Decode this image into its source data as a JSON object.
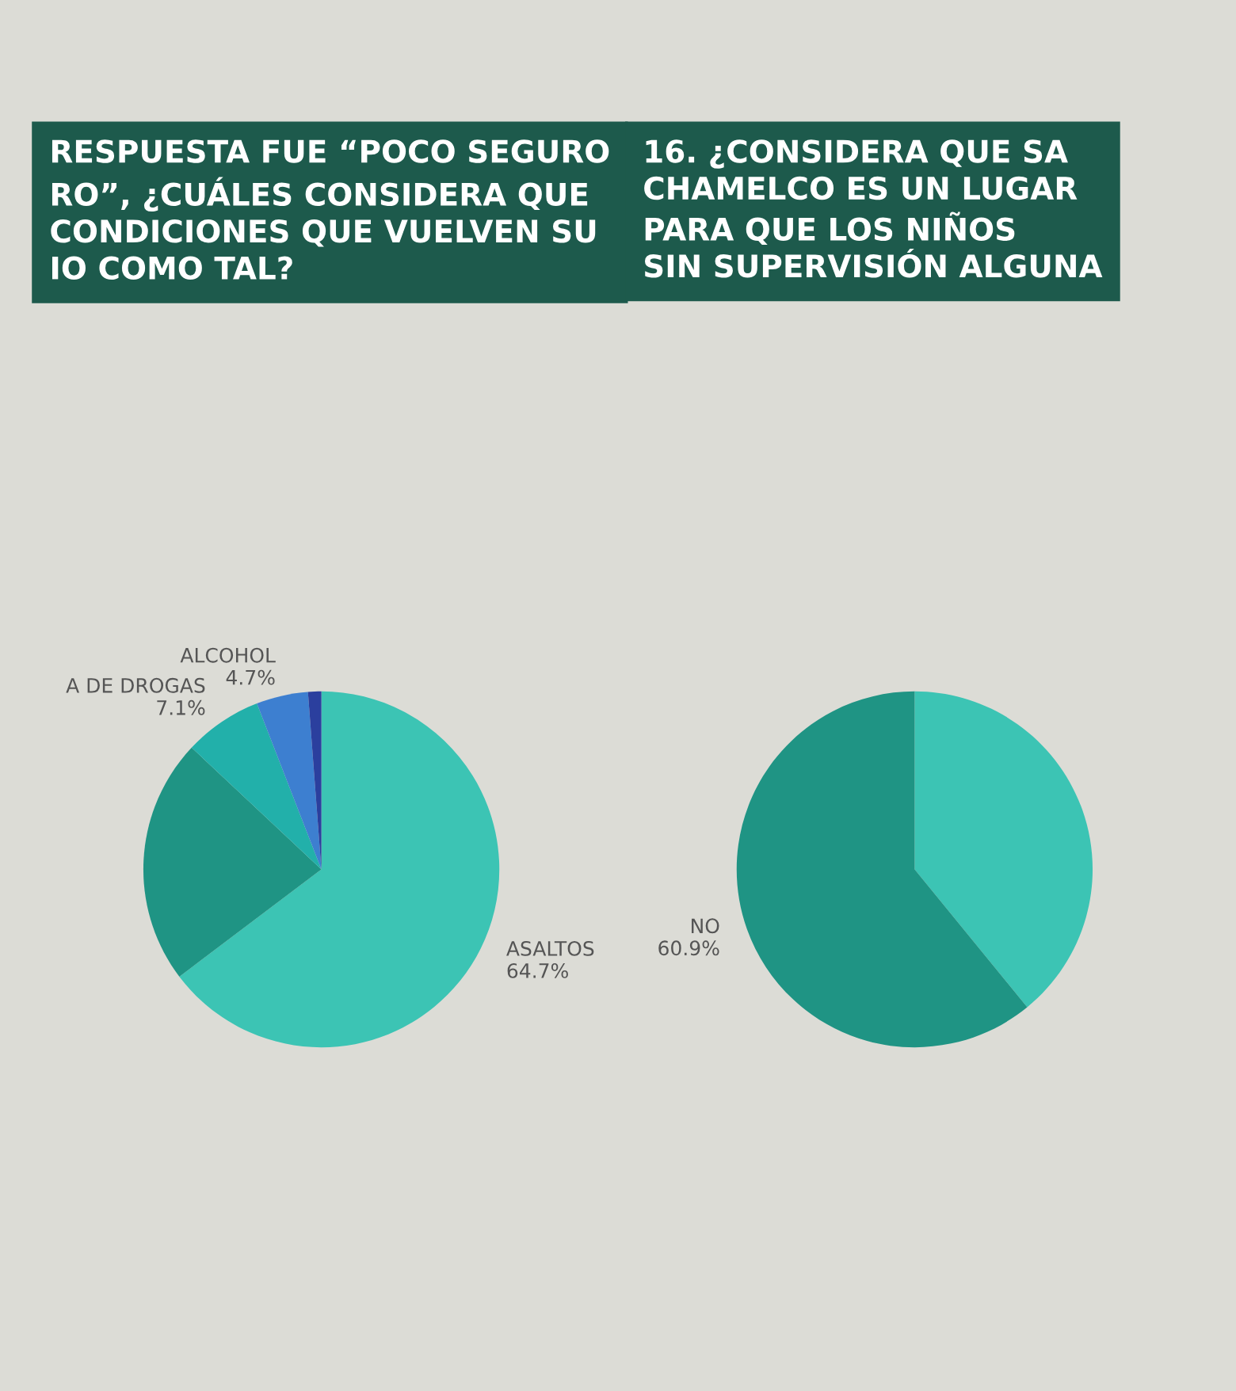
{
  "chart_data": [
    {
      "type": "pie",
      "title": "RESPUESTA FUE “POCO SEGURO\nRO”, ¿CUÁLES CONSIDERA QUE\nCONDICIONES QUE VUELVEN SU\nIO COMO TAL?",
      "categories": [
        "ASALTOS",
        null,
        "A DE DROGAS",
        "ALCOHOL",
        null
      ],
      "values": [
        64.7,
        22.3,
        7.1,
        4.7,
        1.2
      ],
      "value_labels": [
        "64.7%",
        null,
        "7.1%",
        "4.7%",
        null
      ],
      "colors": [
        "#3cc4b4",
        "#1f9484",
        "#22b0aa",
        "#3d7fd0",
        "#2b3f9e"
      ]
    },
    {
      "type": "pie",
      "title": "16. ¿CONSIDERA QUE SA\nCHAMELCO ES UN LUGAR\nPARA QUE LOS NIÑOS\nSIN SUPERVISIÓN ALGUNA",
      "categories": [
        null,
        "NO"
      ],
      "values": [
        39.1,
        60.9
      ],
      "value_labels": [
        null,
        "60.9%"
      ],
      "colors": [
        "#3cc4b4",
        "#1f9484"
      ]
    }
  ]
}
